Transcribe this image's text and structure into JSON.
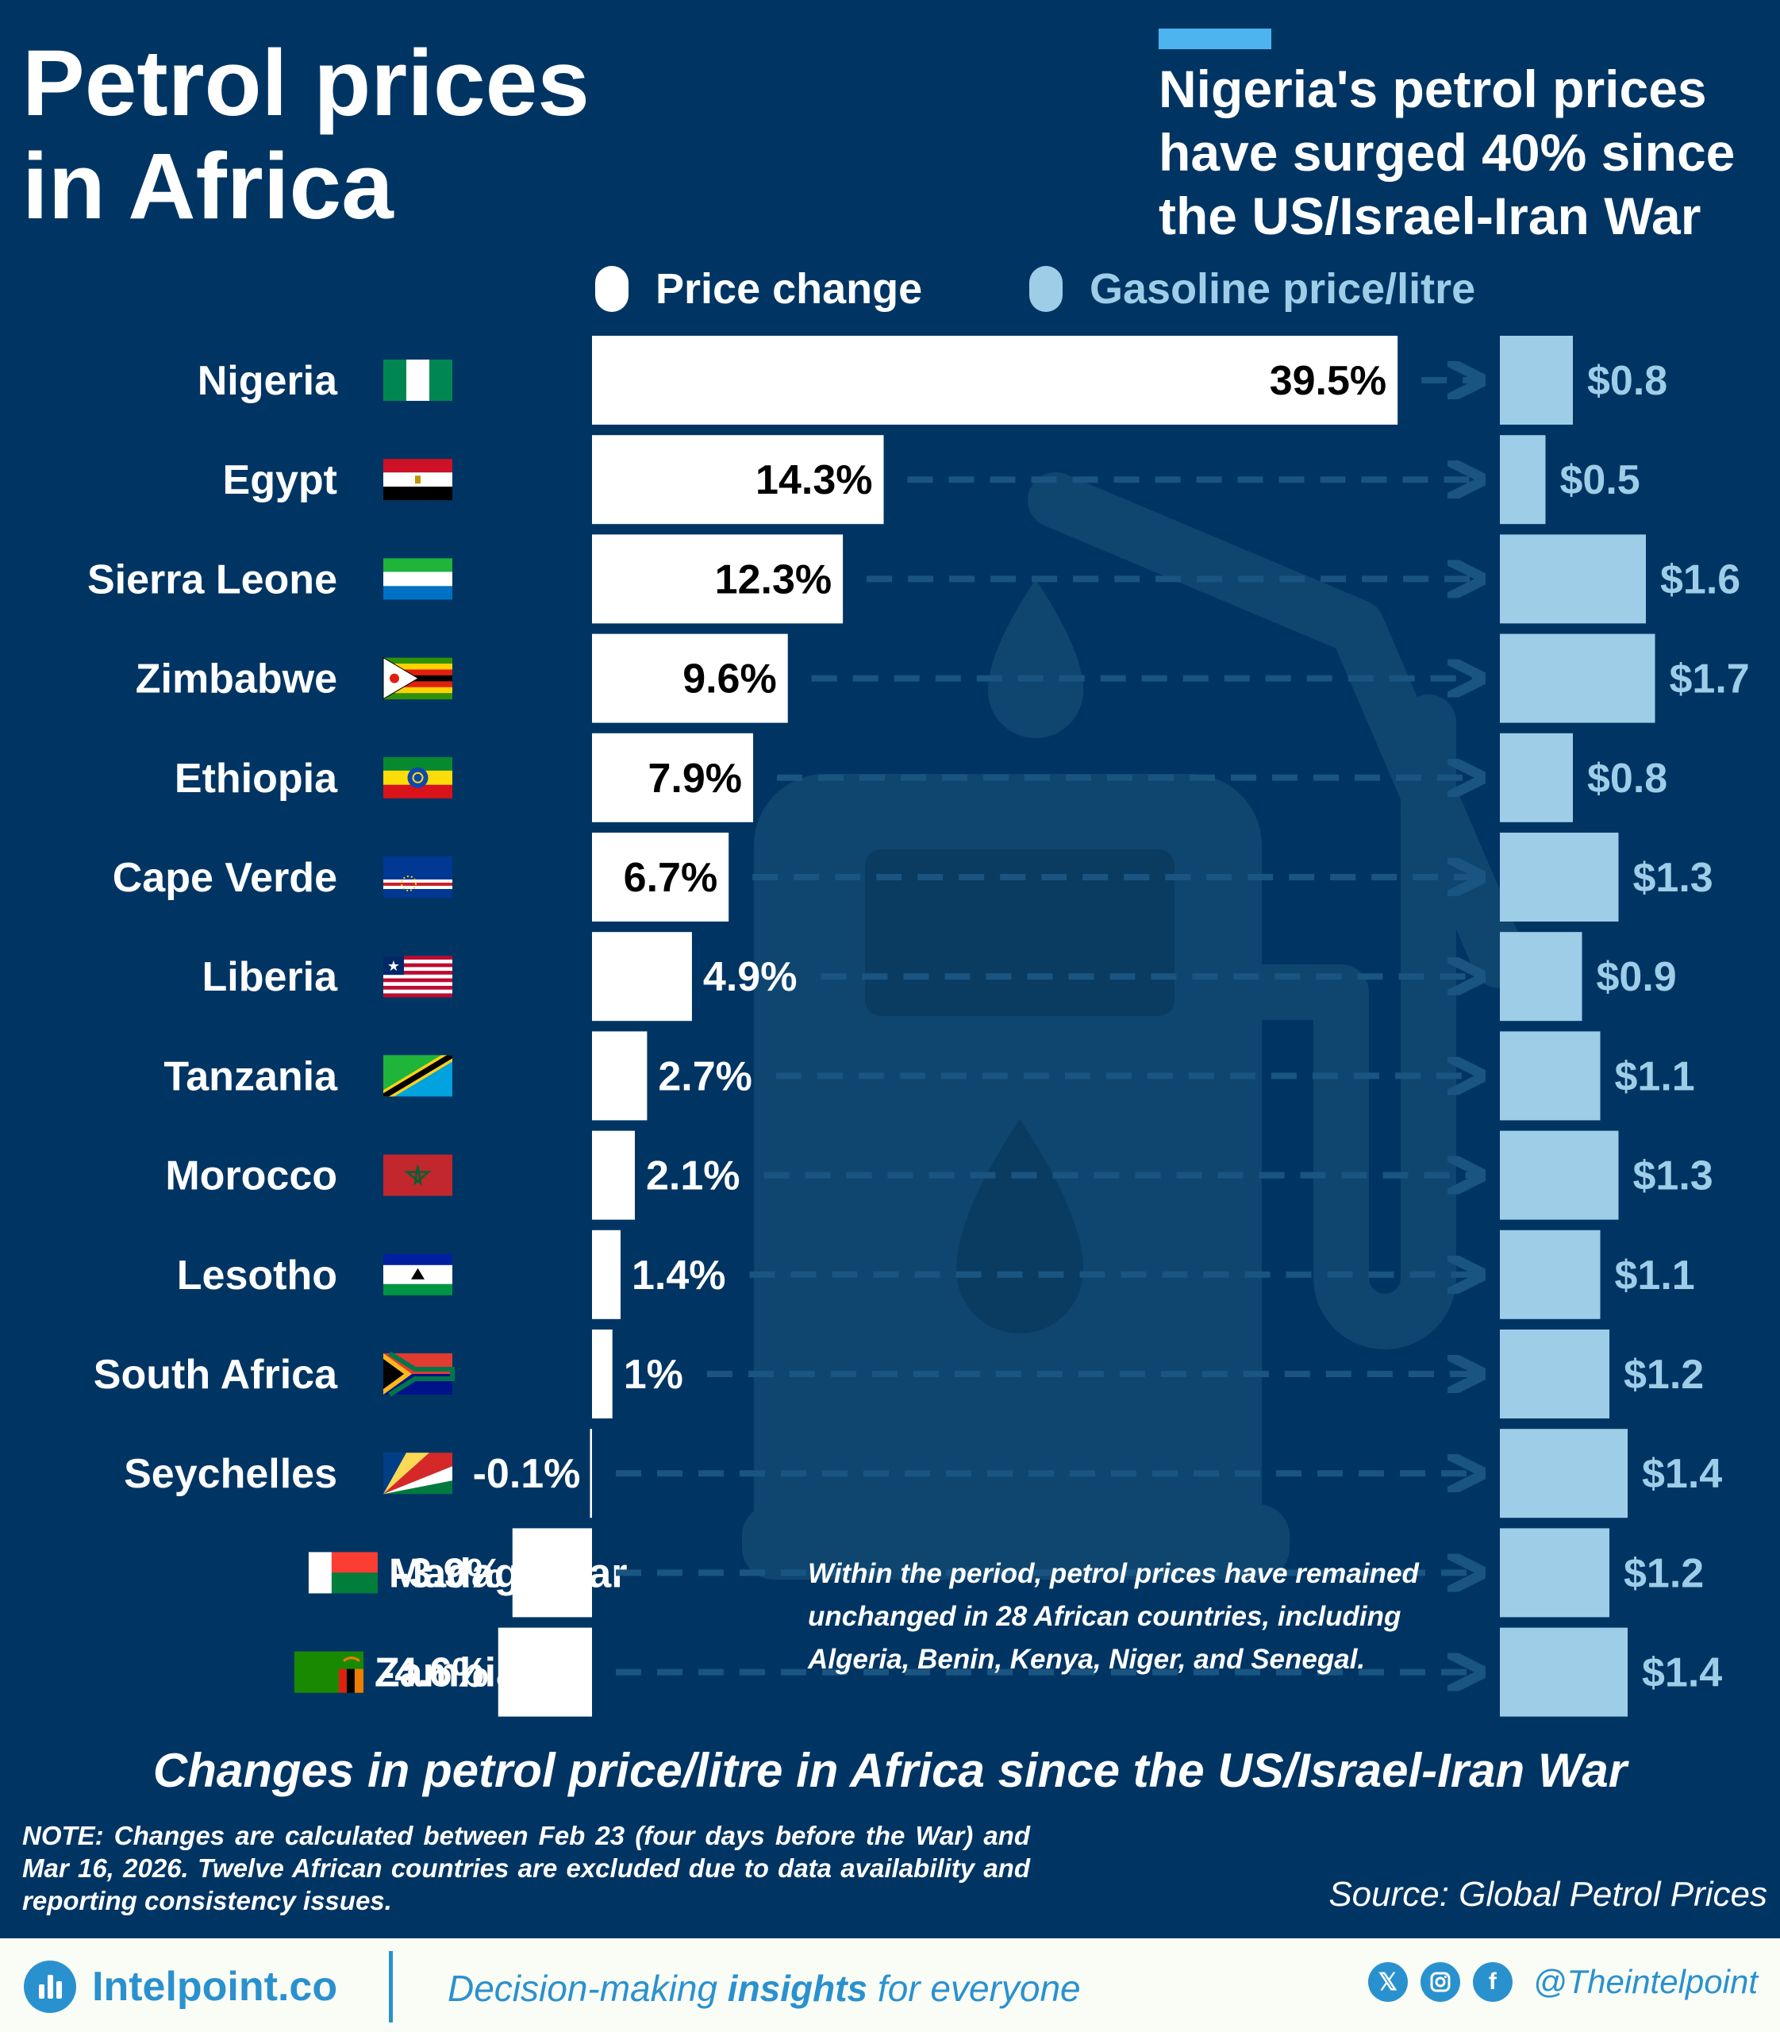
{
  "title_lines": [
    "Petrol prices",
    "in Africa"
  ],
  "subtitle_lines": [
    "Nigeria's petrol prices",
    "have surged 40% since",
    "the US/Israel-Iran War"
  ],
  "legend": {
    "price_change": "Price change",
    "gasoline": "Gasoline price/litre"
  },
  "chart_data": {
    "type": "bar",
    "title": "Changes in petrol price/litre in Africa since the US/Israel-Iran War",
    "categories": [
      "Nigeria",
      "Egypt",
      "Sierra Leone",
      "Zimbabwe",
      "Ethiopia",
      "Cape Verde",
      "Liberia",
      "Tanzania",
      "Morocco",
      "Lesotho",
      "South Africa",
      "Seychelles",
      "Madagascar",
      "Zambia"
    ],
    "series": [
      {
        "name": "Price change",
        "unit": "%",
        "values": [
          39.5,
          14.3,
          12.3,
          9.6,
          7.9,
          6.7,
          4.9,
          2.7,
          2.1,
          1.4,
          1,
          -0.1,
          -3.9,
          -4.6
        ],
        "labels": [
          "39.5%",
          "14.3%",
          "12.3%",
          "9.6%",
          "7.9%",
          "6.7%",
          "4.9%",
          "2.7%",
          "2.1%",
          "1.4%",
          "1%",
          "-0.1%",
          "-3.9%",
          "-4.6%"
        ]
      },
      {
        "name": "Gasoline price/litre",
        "unit": "$",
        "values": [
          0.8,
          0.5,
          1.6,
          1.7,
          0.8,
          1.3,
          0.9,
          1.1,
          1.3,
          1.1,
          1.2,
          1.4,
          1.2,
          1.4
        ],
        "labels": [
          "$0.8",
          "$0.5",
          "$1.6",
          "$1.7",
          "$0.8",
          "$1.3",
          "$0.9",
          "$1.1",
          "$1.3",
          "$1.1",
          "$1.2",
          "$1.4",
          "$1.2",
          "$1.4"
        ]
      }
    ],
    "colors": {
      "background": "#003563",
      "price_change": "#ffffff",
      "gasoline": "#9ecde8",
      "accent": "#4db4f0"
    },
    "flags": [
      "nigeria-flag",
      "egypt-flag",
      "sierra-leone-flag",
      "zimbabwe-flag",
      "ethiopia-flag",
      "cape-verde-flag",
      "liberia-flag",
      "tanzania-flag",
      "morocco-flag",
      "lesotho-flag",
      "south-africa-flag",
      "seychelles-flag",
      "madagascar-flag",
      "zambia-flag"
    ]
  },
  "inline_note": "Within the period, petrol prices have remained unchanged in 28 African countries, including Algeria, Benin, Kenya, Niger, and Senegal.",
  "caption": "Changes in petrol price/litre in Africa since the US/Israel-Iran War",
  "note": "NOTE: Changes are calculated between Feb 23 (four days before the War) and Mar 16, 2026. Twelve African countries are excluded due to data availability and reporting consistency issues.",
  "source": "Source: Global Petrol Prices",
  "footer": {
    "brand": "Intelpoint.co",
    "tagline_pre": "Decision-making ",
    "tagline_bold": "insights",
    "tagline_post": " for everyone",
    "handle": "@Theintelpoint",
    "icons": [
      "x-icon",
      "instagram-icon",
      "facebook-icon"
    ]
  }
}
